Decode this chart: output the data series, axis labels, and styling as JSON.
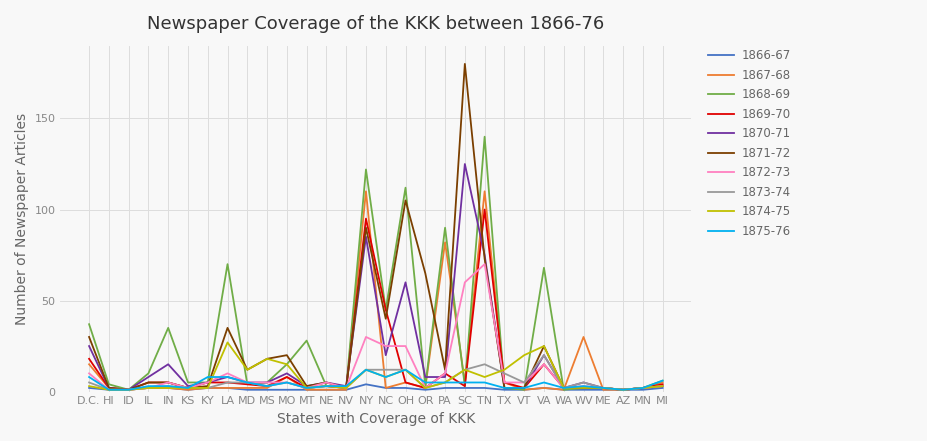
{
  "title": "Newspaper Coverage of the KKK between 1866-76",
  "xlabel": "States with Coverage of KKK",
  "ylabel": "Number of Newspaper Articles",
  "states": [
    "D.C.",
    "HI",
    "ID",
    "IL",
    "IN",
    "KS",
    "KY",
    "LA",
    "MD",
    "MS",
    "MO",
    "MT",
    "NE",
    "NV",
    "NY",
    "NC",
    "OH",
    "OR",
    "PA",
    "SC",
    "TN",
    "TX",
    "VT",
    "VA",
    "WA",
    "WV",
    "ME",
    "AZ",
    "MN",
    "MI"
  ],
  "series": {
    "1866-67": {
      "color": "#4472c4",
      "values": [
        2,
        1,
        1,
        2,
        2,
        1,
        2,
        2,
        1,
        1,
        1,
        1,
        1,
        1,
        4,
        2,
        2,
        1,
        2,
        2,
        2,
        1,
        1,
        2,
        1,
        1,
        1,
        1,
        1,
        2
      ]
    },
    "1867-68": {
      "color": "#ed7d31",
      "values": [
        15,
        2,
        1,
        2,
        2,
        1,
        2,
        2,
        2,
        2,
        8,
        1,
        1,
        1,
        110,
        2,
        5,
        2,
        82,
        5,
        110,
        5,
        1,
        2,
        1,
        30,
        1,
        1,
        2,
        5
      ]
    },
    "1868-69": {
      "color": "#70ad47",
      "values": [
        37,
        4,
        1,
        10,
        35,
        5,
        5,
        70,
        4,
        5,
        15,
        28,
        3,
        2,
        122,
        45,
        112,
        3,
        90,
        3,
        140,
        2,
        1,
        68,
        1,
        2,
        2,
        1,
        2,
        6
      ]
    },
    "1869-70": {
      "color": "#e00000",
      "values": [
        18,
        2,
        1,
        5,
        5,
        2,
        5,
        5,
        4,
        3,
        8,
        2,
        3,
        2,
        95,
        45,
        5,
        2,
        10,
        3,
        100,
        5,
        2,
        15,
        2,
        2,
        2,
        1,
        2,
        4
      ]
    },
    "1870-71": {
      "color": "#7030a0",
      "values": [
        25,
        2,
        1,
        8,
        15,
        3,
        5,
        8,
        5,
        5,
        10,
        3,
        5,
        3,
        85,
        20,
        60,
        8,
        8,
        125,
        75,
        2,
        2,
        20,
        2,
        5,
        2,
        1,
        2,
        3
      ]
    },
    "1871-72": {
      "color": "#7b3f00",
      "values": [
        30,
        2,
        1,
        5,
        5,
        2,
        3,
        35,
        12,
        18,
        20,
        3,
        5,
        2,
        90,
        40,
        105,
        65,
        12,
        180,
        73,
        2,
        2,
        25,
        2,
        2,
        2,
        1,
        2,
        3
      ]
    },
    "1872-73": {
      "color": "#ff80c0",
      "values": [
        10,
        1,
        1,
        2,
        5,
        2,
        5,
        10,
        5,
        5,
        5,
        2,
        5,
        2,
        30,
        25,
        25,
        2,
        10,
        60,
        70,
        5,
        5,
        15,
        2,
        3,
        2,
        1,
        2,
        3
      ]
    },
    "1873-74": {
      "color": "#999999",
      "values": [
        5,
        1,
        1,
        2,
        3,
        2,
        2,
        5,
        5,
        3,
        5,
        2,
        3,
        2,
        12,
        12,
        12,
        2,
        5,
        12,
        15,
        10,
        5,
        20,
        2,
        5,
        2,
        1,
        2,
        3
      ]
    },
    "1874-75": {
      "color": "#c0c000",
      "values": [
        3,
        1,
        1,
        2,
        2,
        2,
        2,
        27,
        12,
        18,
        15,
        2,
        3,
        2,
        12,
        8,
        12,
        2,
        5,
        12,
        8,
        12,
        20,
        25,
        2,
        2,
        2,
        1,
        2,
        3
      ]
    },
    "1875-76": {
      "color": "#00b0f0",
      "values": [
        8,
        1,
        1,
        3,
        3,
        2,
        8,
        8,
        5,
        3,
        5,
        2,
        3,
        3,
        12,
        8,
        12,
        5,
        5,
        5,
        5,
        2,
        2,
        5,
        2,
        3,
        2,
        1,
        2,
        6
      ]
    }
  },
  "figsize": [
    9.27,
    4.41
  ],
  "dpi": 100,
  "ylim": [
    0,
    190
  ],
  "yticks": [
    0,
    50,
    100,
    150
  ],
  "title_fontsize": 13,
  "axis_label_fontsize": 10,
  "tick_fontsize": 8,
  "legend_fontsize": 8.5,
  "background_color": "#f8f8f8",
  "grid_color": "#dddddd",
  "spine_color": "#cccccc",
  "tick_color": "#888888",
  "title_color": "#333333",
  "label_color": "#666666"
}
